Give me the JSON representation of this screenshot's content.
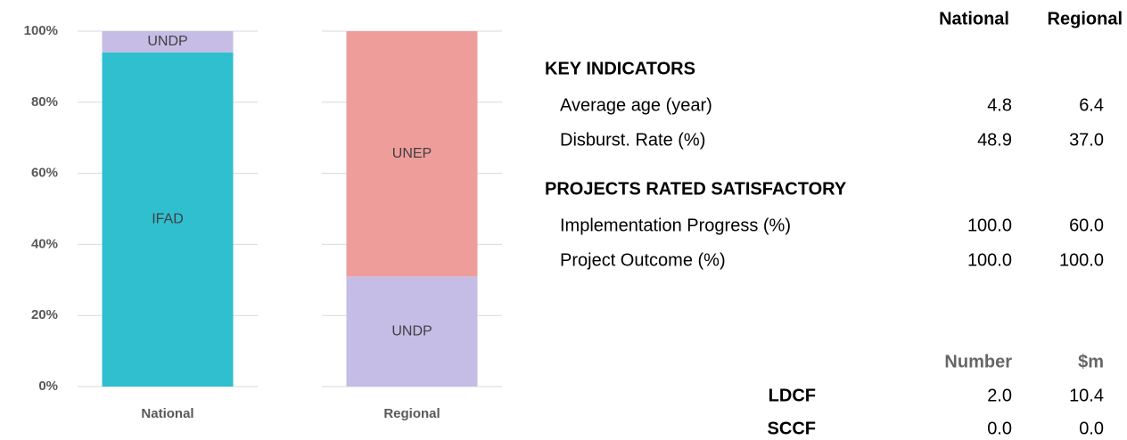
{
  "chart_data": {
    "type": "stacked_bar",
    "categories": [
      "National",
      "Regional"
    ],
    "series": [
      {
        "name": "IFAD",
        "color": "#2fbfcf",
        "values": [
          94,
          0
        ]
      },
      {
        "name": "UNDP",
        "color": "#c5bde6",
        "values": [
          6,
          31
        ]
      },
      {
        "name": "UNEP",
        "color": "#ee9d9b",
        "values": [
          0,
          69
        ]
      }
    ],
    "ylim": [
      0,
      100
    ],
    "yticks": [
      {
        "value": 0,
        "label": "0%"
      },
      {
        "value": 20,
        "label": "20%"
      },
      {
        "value": 40,
        "label": "40%"
      },
      {
        "value": 60,
        "label": "60%"
      },
      {
        "value": 80,
        "label": "80%"
      },
      {
        "value": 100,
        "label": "100%"
      }
    ],
    "grid": true
  },
  "table": {
    "columns": [
      "National",
      "Regional"
    ],
    "sections": [
      {
        "title": "KEY INDICATORS",
        "rows": [
          {
            "label": "Average age (year)",
            "values": [
              "4.8",
              "6.4"
            ]
          },
          {
            "label": "Disburst. Rate (%)",
            "values": [
              "48.9",
              "37.0"
            ]
          }
        ]
      },
      {
        "title": "PROJECTS RATED SATISFACTORY",
        "rows": [
          {
            "label": "Implementation Progress (%)",
            "values": [
              "100.0",
              "60.0"
            ]
          },
          {
            "label": "Project Outcome (%)",
            "values": [
              "100.0",
              "100.0"
            ]
          }
        ]
      }
    ]
  },
  "funds": {
    "columns": [
      "Number",
      "$m"
    ],
    "rows": [
      {
        "label": "LDCF",
        "values": [
          "2.0",
          "10.4"
        ]
      },
      {
        "label": "SCCF",
        "values": [
          "0.0",
          "0.0"
        ]
      }
    ]
  }
}
